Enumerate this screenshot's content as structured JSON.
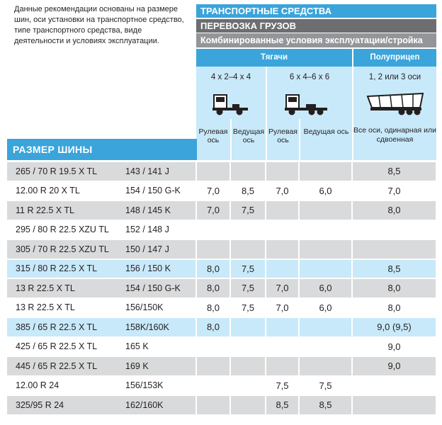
{
  "intro": "Данные рекомендации основаны на размере шин, оси установки на транспортное средство, типе транспортного средства, виде деятельности и условиях эксплуатации.",
  "headers": {
    "vehicles": "ТРАНСПОРТНЫЕ СРЕДСТВА",
    "cargo": "ПЕРЕВОЗКА ГРУЗОВ",
    "conditions": "Комбинированные условия эксплуатации/стройка",
    "tractors": "Тягачи",
    "semitrailer": "Полуприцеп",
    "config1": "4 x 2–4 x 4",
    "config2": "6 x 4–6 x 6",
    "config3": "1, 2 или 3 оси",
    "steer1": "Рулевая ось",
    "drive1": "Ведущая ось",
    "steer2": "Рулевая ось",
    "drive2": "Ведущая ось",
    "all_axles": "Все оси, одинарная или сдвоенная",
    "tire_size": "РАЗМЕР ШИНЫ"
  },
  "icons": {
    "tractor1": "tractor-truck-icon",
    "tractor2": "tractor-truck-icon",
    "semitrailer": "dump-semitrailer-icon"
  },
  "colors": {
    "accent_blue": "#3aa4db",
    "dark_gray": "#6d6e71",
    "mid_gray": "#939598",
    "light_blue": "#c8e9f9",
    "light_gray": "#d9dadb"
  },
  "rows": [
    {
      "size": "265 / 70 R 19.5 X TL",
      "load": "143 / 141 J",
      "s1": "",
      "d1": "",
      "s2": "",
      "d2": "",
      "trailer": "8,5",
      "style": "shaded"
    },
    {
      "size": "12.00 R 20 X TL",
      "load": "154 / 150 G-K",
      "s1": "7,0",
      "d1": "8,5",
      "s2": "7,0",
      "d2": "6,0",
      "trailer": "7,0",
      "style": "plain"
    },
    {
      "size": "11 R 22.5 X TL",
      "load": "148 / 145 K",
      "s1": "7,0",
      "d1": "7,5",
      "s2": "",
      "d2": "",
      "trailer": "8,0",
      "style": "shaded"
    },
    {
      "size": "295 / 80 R 22.5 XZU TL",
      "load": "152 / 148 J",
      "s1": "",
      "d1": "",
      "s2": "",
      "d2": "",
      "trailer": "",
      "style": "plain"
    },
    {
      "size": "305 / 70 R 22.5 XZU TL",
      "load": "150 / 147 J",
      "s1": "",
      "d1": "",
      "s2": "",
      "d2": "",
      "trailer": "",
      "style": "shaded"
    },
    {
      "size": "315 / 80 R 22.5 X TL",
      "load": "156 / 150 K",
      "s1": "8,0",
      "d1": "7,5",
      "s2": "",
      "d2": "",
      "trailer": "8,5",
      "style": "blue"
    },
    {
      "size": "13 R 22.5 X TL",
      "load": "154 / 150 G-K",
      "s1": "8,0",
      "d1": "7,5",
      "s2": "7,0",
      "d2": "6,0",
      "trailer": "8,0",
      "style": "shaded"
    },
    {
      "size": "13 R 22.5 X TL",
      "load": "156/150K",
      "s1": "8,0",
      "d1": "7,5",
      "s2": "7,0",
      "d2": "6,0",
      "trailer": "8,0",
      "style": "plain"
    },
    {
      "size": "385 / 65 R 22.5 X TL",
      "load": "158K/160K",
      "s1": "8,0",
      "d1": "",
      "s2": "",
      "d2": "",
      "trailer": "9,0 (9,5)",
      "style": "blue"
    },
    {
      "size": "425 / 65 R 22.5 X TL",
      "load": "165 K",
      "s1": "",
      "d1": "",
      "s2": "",
      "d2": "",
      "trailer": "9,0",
      "style": "plain"
    },
    {
      "size": "445 / 65 R 22.5 X TL",
      "load": "169 K",
      "s1": "",
      "d1": "",
      "s2": "",
      "d2": "",
      "trailer": "9,0",
      "style": "shaded"
    },
    {
      "size": "12.00 R 24",
      "load": "156/153K",
      "s1": "",
      "d1": "",
      "s2": "7,5",
      "d2": "7,5",
      "trailer": "",
      "style": "plain"
    },
    {
      "size": "325/95 R 24",
      "load": "162/160K",
      "s1": "",
      "d1": "",
      "s2": "8,5",
      "d2": "8,5",
      "trailer": "",
      "style": "shaded"
    }
  ]
}
